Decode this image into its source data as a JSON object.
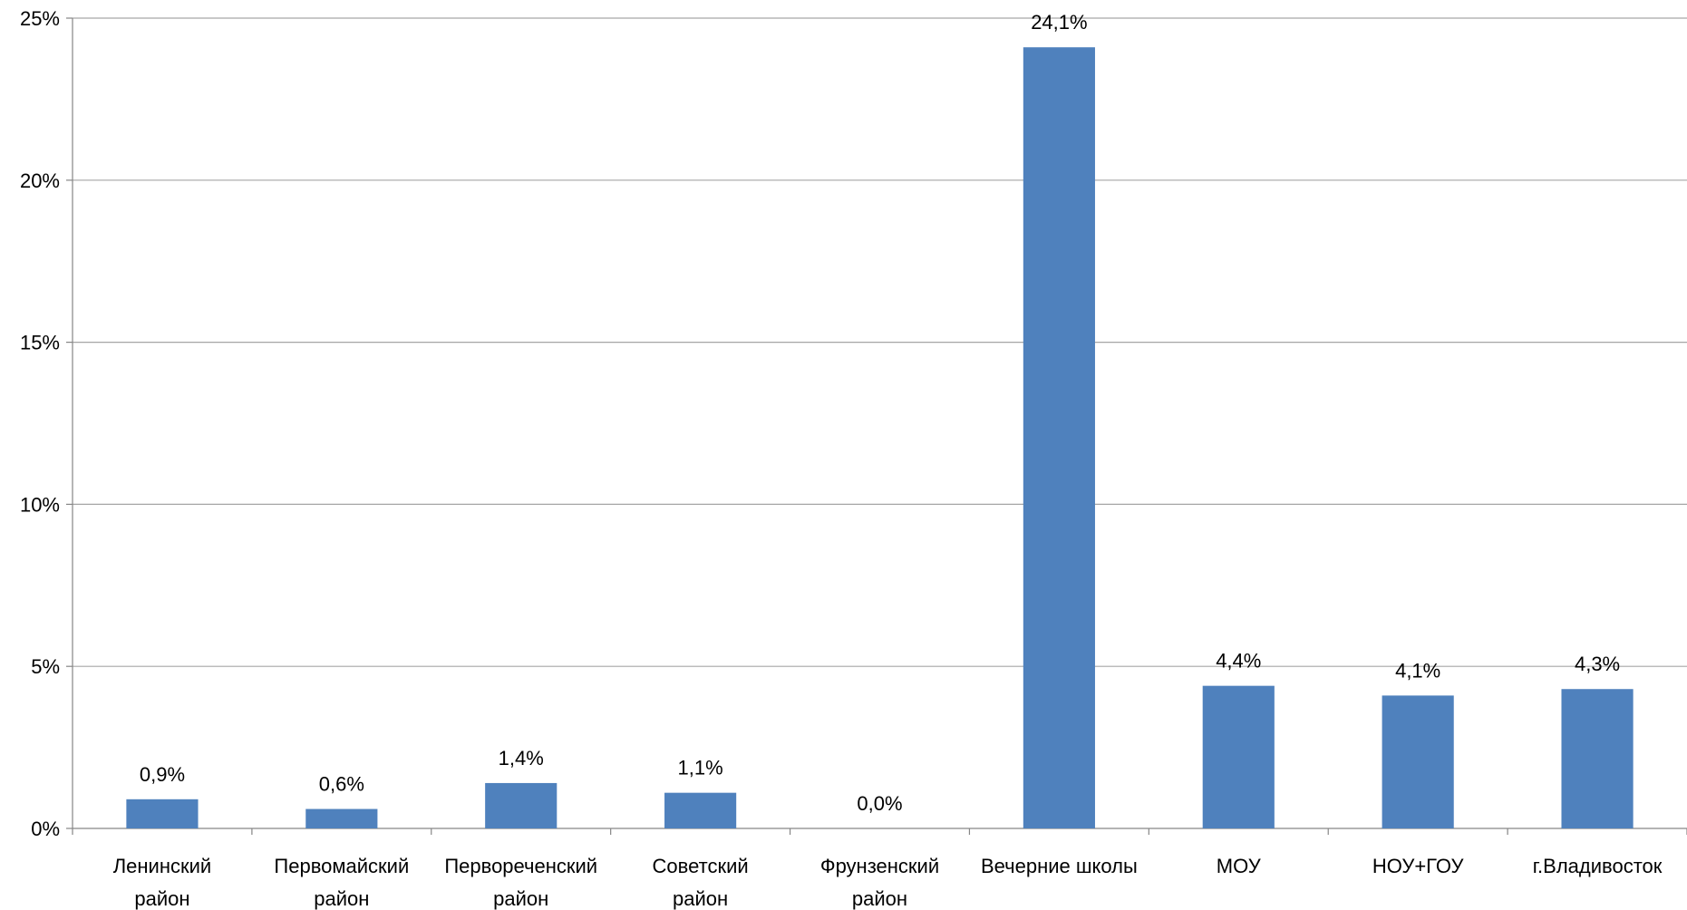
{
  "chart_data": {
    "type": "bar",
    "categories": [
      [
        "Ленинский",
        "район"
      ],
      [
        "Первомайский",
        "район"
      ],
      [
        "Первореченский",
        "район"
      ],
      [
        "Советский",
        "район"
      ],
      [
        "Фрунзенский",
        "район"
      ],
      [
        "Вечерние школы"
      ],
      [
        "МОУ"
      ],
      [
        "НОУ+ГОУ"
      ],
      [
        "г.Владивосток"
      ]
    ],
    "values": [
      0.9,
      0.6,
      1.4,
      1.1,
      0.0,
      24.1,
      4.4,
      4.1,
      4.3
    ],
    "data_labels": [
      "0,9%",
      "0,6%",
      "1,4%",
      "1,1%",
      "0,0%",
      "24,1%",
      "4,4%",
      "4,1%",
      "4,3%"
    ],
    "y_ticks": [
      0,
      5,
      10,
      15,
      20,
      25
    ],
    "y_tick_labels": [
      "0%",
      "5%",
      "10%",
      "15%",
      "20%",
      "25%"
    ],
    "ylim": [
      0,
      25
    ],
    "title": "",
    "xlabel": "",
    "ylabel": "",
    "grid": true,
    "legend": "none",
    "bar_color": "#4F81BD",
    "grid_color": "#A6A6A6",
    "axis_color": "#868686"
  }
}
